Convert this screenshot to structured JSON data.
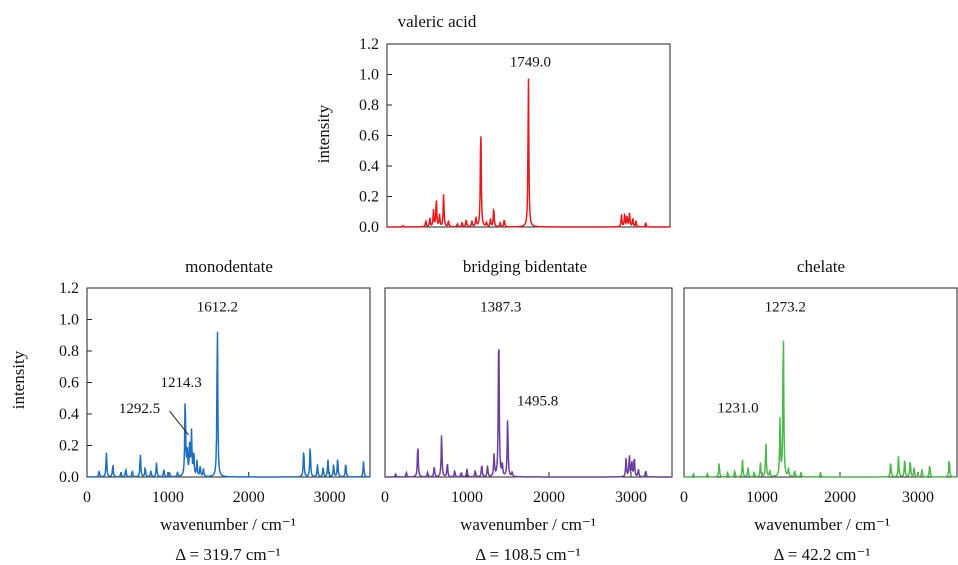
{
  "chart_data": [
    {
      "type": "line",
      "title": "valeric acid",
      "xlabel": "",
      "ylabel": "intensity",
      "xlim": [
        0,
        3500
      ],
      "ylim": [
        0,
        1.2
      ],
      "xticks": [],
      "yticks": [
        "0.0",
        "0.2",
        "0.4",
        "0.6",
        "0.8",
        "1.0",
        "1.2"
      ],
      "footer": "",
      "color": "#e8191b",
      "peaks": [
        [
          200,
          0.01
        ],
        [
          480,
          0.04
        ],
        [
          530,
          0.06
        ],
        [
          575,
          0.11
        ],
        [
          610,
          0.19
        ],
        [
          650,
          0.08
        ],
        [
          700,
          0.22
        ],
        [
          760,
          0.04
        ],
        [
          870,
          0.02
        ],
        [
          930,
          0.03
        ],
        [
          980,
          0.05
        ],
        [
          1050,
          0.04
        ],
        [
          1100,
          0.06
        ],
        [
          1160,
          0.7
        ],
        [
          1230,
          0.03
        ],
        [
          1280,
          0.05
        ],
        [
          1320,
          0.13
        ],
        [
          1400,
          0.03
        ],
        [
          1450,
          0.05
        ],
        [
          1749,
          1.0
        ],
        [
          2900,
          0.08
        ],
        [
          2940,
          0.09
        ],
        [
          2970,
          0.07
        ],
        [
          3000,
          0.09
        ],
        [
          3040,
          0.06
        ],
        [
          3080,
          0.04
        ],
        [
          3200,
          0.03
        ]
      ],
      "labels": [
        {
          "x": 1749,
          "y": 1.0,
          "text": "1749.0"
        }
      ]
    },
    {
      "type": "line",
      "title": "monodentate",
      "xlabel": "wavenumber / cm⁻¹",
      "ylabel": "intensity",
      "xlim": [
        0,
        3500
      ],
      "ylim": [
        0,
        1.2
      ],
      "xticks": [
        "0",
        "1000",
        "2000",
        "3000"
      ],
      "yticks": [
        "0.0",
        "0.2",
        "0.4",
        "0.6",
        "0.8",
        "1.0",
        "1.2"
      ],
      "footer": "Δ = 319.7 cm⁻¹",
      "color": "#1f6fc0",
      "peaks": [
        [
          150,
          0.04
        ],
        [
          240,
          0.16
        ],
        [
          320,
          0.08
        ],
        [
          420,
          0.03
        ],
        [
          480,
          0.05
        ],
        [
          560,
          0.04
        ],
        [
          660,
          0.15
        ],
        [
          720,
          0.06
        ],
        [
          790,
          0.04
        ],
        [
          860,
          0.09
        ],
        [
          950,
          0.05
        ],
        [
          1020,
          0.03
        ],
        [
          1120,
          0.03
        ],
        [
          1214.3,
          0.52
        ],
        [
          1240,
          0.18
        ],
        [
          1270,
          0.22
        ],
        [
          1292.5,
          0.28
        ],
        [
          1320,
          0.16
        ],
        [
          1360,
          0.1
        ],
        [
          1400,
          0.07
        ],
        [
          1440,
          0.05
        ],
        [
          1612.2,
          1.0
        ],
        [
          2680,
          0.18
        ],
        [
          2760,
          0.2
        ],
        [
          2850,
          0.08
        ],
        [
          2920,
          0.06
        ],
        [
          2980,
          0.11
        ],
        [
          3050,
          0.08
        ],
        [
          3100,
          0.12
        ],
        [
          3200,
          0.09
        ],
        [
          3420,
          0.1
        ]
      ],
      "labels": [
        {
          "x": 1612.2,
          "y": 1.0,
          "text": "1612.2"
        },
        {
          "x": 1214.3,
          "y": 0.52,
          "text": "1214.3"
        },
        {
          "x": 1292.5,
          "y": 0.28,
          "text": "1292.5"
        }
      ]
    },
    {
      "type": "line",
      "title": "bridging bidentate",
      "xlabel": "wavenumber / cm⁻¹",
      "ylabel": "",
      "xlim": [
        0,
        3500
      ],
      "ylim": [
        0,
        1.2
      ],
      "xticks": [
        "0",
        "1000",
        "2000",
        "3000"
      ],
      "yticks": [],
      "footer": "Δ = 108.5 cm⁻¹",
      "color": "#6b3fa0",
      "peaks": [
        [
          130,
          0.02
        ],
        [
          260,
          0.03
        ],
        [
          400,
          0.21
        ],
        [
          520,
          0.03
        ],
        [
          600,
          0.07
        ],
        [
          690,
          0.27
        ],
        [
          760,
          0.09
        ],
        [
          850,
          0.04
        ],
        [
          930,
          0.03
        ],
        [
          1000,
          0.05
        ],
        [
          1100,
          0.04
        ],
        [
          1180,
          0.08
        ],
        [
          1250,
          0.07
        ],
        [
          1330,
          0.14
        ],
        [
          1387.3,
          1.0
        ],
        [
          1430,
          0.08
        ],
        [
          1495.8,
          0.39
        ],
        [
          1550,
          0.03
        ],
        [
          2940,
          0.12
        ],
        [
          2980,
          0.14
        ],
        [
          3010,
          0.1
        ],
        [
          3040,
          0.13
        ],
        [
          3090,
          0.05
        ],
        [
          3180,
          0.04
        ]
      ],
      "labels": [
        {
          "x": 1387.3,
          "y": 1.0,
          "text": "1387.3"
        },
        {
          "x": 1495.8,
          "y": 0.39,
          "text": "1495.8"
        }
      ]
    },
    {
      "type": "line",
      "title": "chelate",
      "xlabel": "wavenumber / cm⁻¹",
      "ylabel": "",
      "xlim": [
        0,
        3500
      ],
      "ylim": [
        0,
        1.2
      ],
      "xticks": [
        "0",
        "1000",
        "2000",
        "3000"
      ],
      "yticks": [],
      "footer": "Δ = 42.2 cm⁻¹",
      "color": "#4cb84c",
      "peaks": [
        [
          120,
          0.02
        ],
        [
          300,
          0.02
        ],
        [
          450,
          0.09
        ],
        [
          560,
          0.03
        ],
        [
          650,
          0.04
        ],
        [
          750,
          0.11
        ],
        [
          820,
          0.06
        ],
        [
          900,
          0.03
        ],
        [
          980,
          0.09
        ],
        [
          1050,
          0.22
        ],
        [
          1100,
          0.04
        ],
        [
          1231,
          0.36
        ],
        [
          1273.2,
          1.0
        ],
        [
          1340,
          0.05
        ],
        [
          1420,
          0.04
        ],
        [
          1500,
          0.03
        ],
        [
          1750,
          0.03
        ],
        [
          2650,
          0.1
        ],
        [
          2750,
          0.13
        ],
        [
          2830,
          0.12
        ],
        [
          2900,
          0.11
        ],
        [
          2950,
          0.06
        ],
        [
          3050,
          0.05
        ],
        [
          3150,
          0.08
        ],
        [
          3400,
          0.12
        ]
      ],
      "labels": [
        {
          "x": 1273.2,
          "y": 1.0,
          "text": "1273.2"
        },
        {
          "x": 1231.0,
          "y": 0.36,
          "text": "1231.0"
        }
      ]
    }
  ]
}
